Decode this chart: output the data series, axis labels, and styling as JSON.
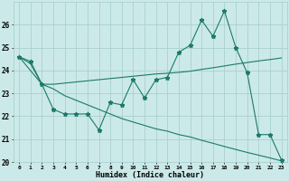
{
  "xlabel": "Humidex (Indice chaleur)",
  "background_color": "#cce9e9",
  "grid_color": "#aacfcf",
  "line_color": "#1a7a6a",
  "x": [
    0,
    1,
    2,
    3,
    4,
    5,
    6,
    7,
    8,
    9,
    10,
    11,
    12,
    13,
    14,
    15,
    16,
    17,
    18,
    19,
    20,
    21,
    22,
    23
  ],
  "line1_y": [
    24.6,
    24.4,
    23.4,
    22.3,
    22.1,
    22.1,
    22.1,
    21.4,
    22.6,
    22.5,
    23.6,
    22.8,
    23.6,
    23.7,
    24.8,
    25.1,
    26.2,
    25.5,
    26.6,
    25.0,
    23.9,
    21.2,
    21.2,
    20.1
  ],
  "line2_y": [
    24.6,
    24.3,
    23.4,
    23.4,
    23.45,
    23.5,
    23.55,
    23.6,
    23.65,
    23.7,
    23.75,
    23.8,
    23.85,
    23.88,
    23.92,
    23.97,
    24.05,
    24.12,
    24.2,
    24.28,
    24.35,
    24.42,
    24.48,
    24.55
  ],
  "line3_y": [
    24.6,
    24.0,
    23.4,
    23.2,
    22.9,
    22.7,
    22.5,
    22.3,
    22.1,
    21.9,
    21.75,
    21.6,
    21.45,
    21.35,
    21.2,
    21.1,
    20.95,
    20.82,
    20.68,
    20.55,
    20.42,
    20.3,
    20.18,
    20.05
  ],
  "ylim": [
    20,
    27
  ],
  "yticks": [
    20,
    21,
    22,
    23,
    24,
    25,
    26
  ],
  "xlim": [
    -0.5,
    23.5
  ],
  "xticks": [
    0,
    1,
    2,
    3,
    4,
    5,
    6,
    7,
    8,
    9,
    10,
    11,
    12,
    13,
    14,
    15,
    16,
    17,
    18,
    19,
    20,
    21,
    22,
    23
  ]
}
